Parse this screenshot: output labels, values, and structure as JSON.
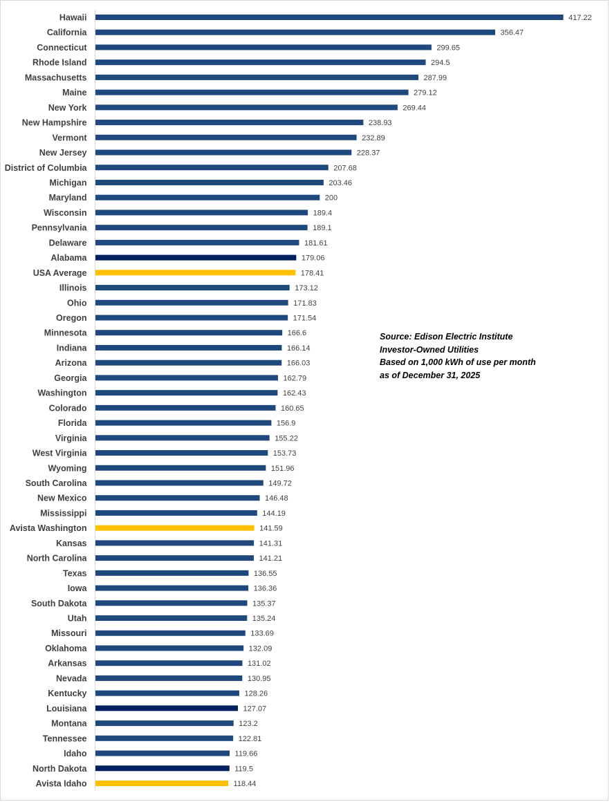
{
  "chart_data": {
    "type": "bar",
    "orientation": "horizontal",
    "title": "",
    "xlabel": "",
    "ylabel": "",
    "xlim": [
      0,
      420
    ],
    "grid": false,
    "legend": "none",
    "colors": {
      "default": "#1f497d",
      "highlight_dark": "#002060",
      "highlight_gold": "#ffc000"
    },
    "categories": [
      "Hawaii",
      "California",
      "Connecticut",
      "Rhode Island",
      "Massachusetts",
      "Maine",
      "New York",
      "New Hampshire",
      "Vermont",
      "New Jersey",
      "District of Columbia",
      "Michigan",
      "Maryland",
      "Wisconsin",
      "Pennsylvania",
      "Delaware",
      "Alabama",
      "USA Average",
      "Illinois",
      "Ohio",
      "Oregon",
      "Minnesota",
      "Indiana",
      "Arizona",
      "Georgia",
      "Washington",
      "Colorado",
      "Florida",
      "Virginia",
      "West Virginia",
      "Wyoming",
      "South Carolina",
      "New Mexico",
      "Mississippi",
      "Avista Washington",
      "Kansas",
      "North Carolina",
      "Texas",
      "Iowa",
      "South Dakota",
      "Utah",
      "Missouri",
      "Oklahoma",
      "Arkansas",
      "Nevada",
      "Kentucky",
      "Louisiana",
      "Montana",
      "Tennessee",
      "Idaho",
      "North Dakota",
      "Avista Idaho"
    ],
    "values": [
      417.22,
      356.47,
      299.65,
      294.5,
      287.99,
      279.12,
      269.44,
      238.93,
      232.89,
      228.37,
      207.68,
      203.46,
      200,
      189.4,
      189.1,
      181.61,
      179.06,
      178.41,
      173.12,
      171.83,
      171.54,
      166.6,
      166.14,
      166.03,
      162.79,
      162.43,
      160.65,
      156.9,
      155.22,
      153.73,
      151.96,
      149.72,
      146.48,
      144.19,
      141.59,
      141.31,
      141.21,
      136.55,
      136.36,
      135.37,
      135.24,
      133.69,
      132.09,
      131.02,
      130.95,
      128.26,
      127.07,
      123.2,
      122.81,
      119.66,
      119.5,
      118.44
    ],
    "value_labels": [
      "417.22",
      "356.47",
      "299.65",
      "294.5",
      "287.99",
      "279.12",
      "269.44",
      "238.93",
      "232.89",
      "228.37",
      "207.68",
      "203.46",
      "200",
      "189.4",
      "189.1",
      "181.61",
      "179.06",
      "178.41",
      "173.12",
      "171.83",
      "171.54",
      "166.6",
      "166.14",
      "166.03",
      "162.79",
      "162.43",
      "160.65",
      "156.9",
      "155.22",
      "153.73",
      "151.96",
      "149.72",
      "146.48",
      "144.19",
      "141.59",
      "141.31",
      "141.21",
      "136.55",
      "136.36",
      "135.37",
      "135.24",
      "133.69",
      "132.09",
      "131.02",
      "130.95",
      "128.26",
      "127.07",
      "123.2",
      "122.81",
      "119.66",
      "119.5",
      "118.44"
    ],
    "bar_color_keys": [
      "default",
      "default",
      "default",
      "default",
      "default",
      "default",
      "default",
      "default",
      "default",
      "default",
      "default",
      "default",
      "default",
      "default",
      "default",
      "default",
      "highlight_dark",
      "highlight_gold",
      "default",
      "default",
      "default",
      "default",
      "default",
      "default",
      "default",
      "default",
      "default",
      "default",
      "default",
      "default",
      "default",
      "default",
      "default",
      "default",
      "highlight_gold",
      "default",
      "default",
      "default",
      "default",
      "default",
      "default",
      "default",
      "default",
      "default",
      "default",
      "default",
      "highlight_dark",
      "default",
      "default",
      "default",
      "highlight_dark",
      "highlight_gold"
    ],
    "annotations": [
      "Source:  Edison Electric Institute",
      "Investor-Owned Utilities",
      "Based on 1,000  kWh of use per month",
      "as of December 31, 2025"
    ]
  }
}
